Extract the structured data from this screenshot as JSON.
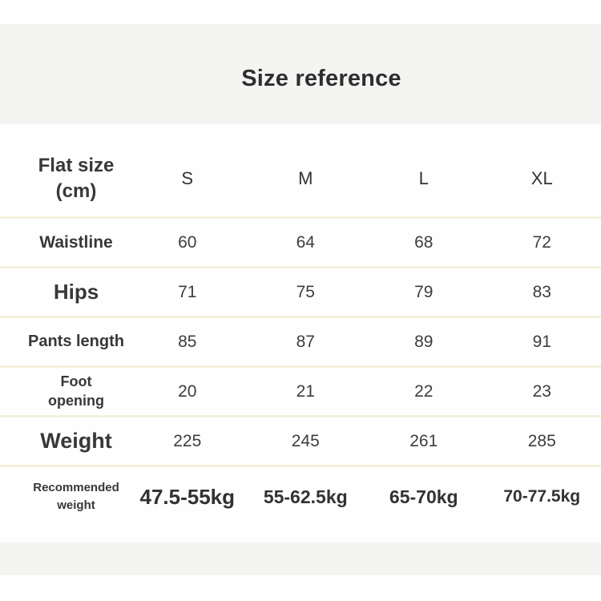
{
  "header": {
    "title": "Size reference"
  },
  "table": {
    "corner": {
      "line1": "Flat size",
      "line2": "(cm)"
    },
    "columns": [
      "S",
      "M",
      "L",
      "XL"
    ],
    "rows": [
      {
        "label": "Waistline",
        "values": [
          "60",
          "64",
          "68",
          "72"
        ]
      },
      {
        "label": "Hips",
        "values": [
          "71",
          "75",
          "79",
          "83"
        ]
      },
      {
        "label": "Pants length",
        "values": [
          "85",
          "87",
          "89",
          "91"
        ]
      },
      {
        "label_line1": "Foot",
        "label_line2": "opening",
        "values": [
          "20",
          "21",
          "22",
          "23"
        ]
      },
      {
        "label": "Weight",
        "values": [
          "225",
          "245",
          "261",
          "285"
        ]
      },
      {
        "label_line1": "Recommended",
        "label_line2": "weight",
        "values": [
          "47.5-55kg",
          "55-62.5kg",
          "65-70kg",
          "70-77.5kg"
        ]
      }
    ]
  },
  "colors": {
    "title_band": "#f4f4f2",
    "divider": "#f3f0dd",
    "text": "#383838"
  }
}
